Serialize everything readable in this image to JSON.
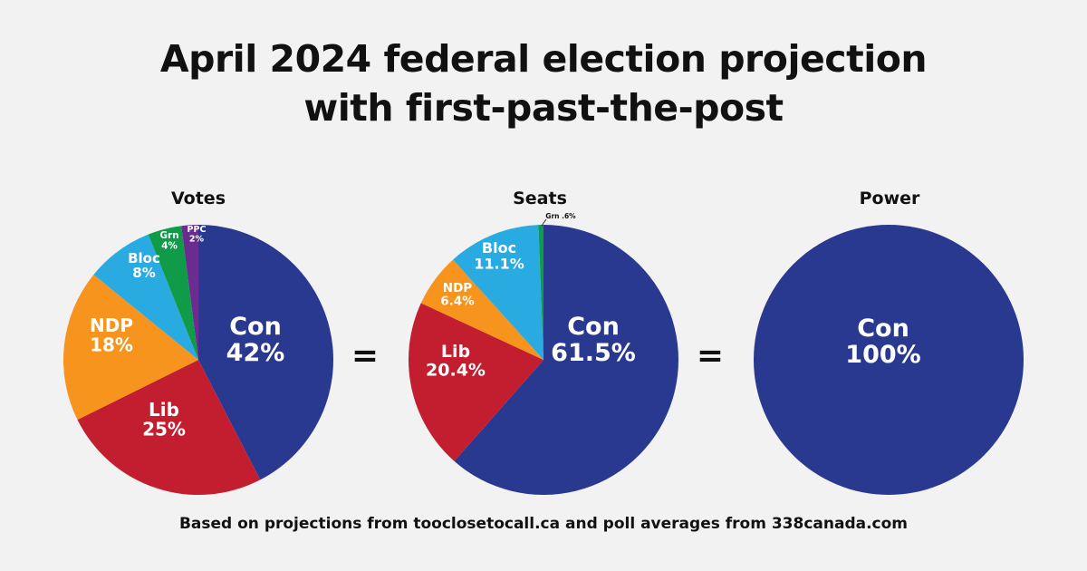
{
  "title_line1": "April 2024 federal election projection",
  "title_line2": "with first-past-the-post",
  "equals": "=",
  "footer": "Based on projections from tooclosetocall.ca and poll averages from 338canada.com",
  "chart_data": [
    {
      "type": "pie",
      "title": "Votes",
      "slices": [
        {
          "label": "Con",
          "value": 42,
          "value_label": "42%",
          "color": "#2a3990"
        },
        {
          "label": "Lib",
          "value": 25,
          "value_label": "25%",
          "color": "#c21e2f"
        },
        {
          "label": "NDP",
          "value": 18,
          "value_label": "18%",
          "color": "#f7941d"
        },
        {
          "label": "Bloc",
          "value": 8,
          "value_label": "8%",
          "color": "#29abe2"
        },
        {
          "label": "Grn",
          "value": 4,
          "value_label": "4%",
          "color": "#0f9b48"
        },
        {
          "label": "PPC",
          "value": 2,
          "value_label": "2%",
          "color": "#6b2c91"
        }
      ]
    },
    {
      "type": "pie",
      "title": "Seats",
      "slices": [
        {
          "label": "Con",
          "value": 61.5,
          "value_label": "61.5%",
          "color": "#2a3990"
        },
        {
          "label": "Lib",
          "value": 20.4,
          "value_label": "20.4%",
          "color": "#c21e2f"
        },
        {
          "label": "NDP",
          "value": 6.4,
          "value_label": "6.4%",
          "color": "#f7941d"
        },
        {
          "label": "Bloc",
          "value": 11.1,
          "value_label": "11.1%",
          "color": "#29abe2"
        },
        {
          "label": "Grn",
          "value": 0.6,
          "value_label": ".6%",
          "color": "#0f9b48"
        }
      ]
    },
    {
      "type": "pie",
      "title": "Power",
      "slices": [
        {
          "label": "Con",
          "value": 100,
          "value_label": "100%",
          "color": "#2a3990"
        }
      ]
    }
  ]
}
